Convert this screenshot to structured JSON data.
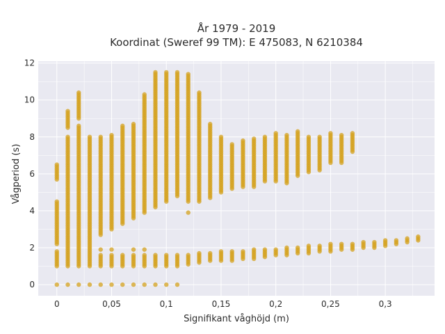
{
  "chart_data": {
    "type": "scatter",
    "title_line1": "År 1979 - 2019",
    "title_line2": "Koordinat (Sweref 99 TM): E 475083, N 6210384",
    "xlabel": "Signifikant våghöjd (m)",
    "ylabel": "Vågperiod (s)",
    "xlim": [
      -0.017,
      0.345
    ],
    "ylim": [
      -0.6,
      12.1
    ],
    "x_ticks": [
      0,
      0.05,
      0.1,
      0.15,
      0.2,
      0.25,
      0.3
    ],
    "x_tick_labels": [
      "0",
      "0,05",
      "0,1",
      "0,15",
      "0,2",
      "0,25",
      "0,3"
    ],
    "y_ticks": [
      0,
      2,
      4,
      6,
      8,
      10,
      12
    ],
    "y_tick_labels": [
      "0",
      "2",
      "4",
      "6",
      "8",
      "10",
      "12"
    ],
    "grid": true,
    "point_color": "#D4A21E",
    "plot_background": "#E9E9F1",
    "series": [
      {
        "columns": [
          {
            "x": 0,
            "segments": [
              [
                0,
                0
              ],
              [
                1,
                1.8
              ],
              [
                2.2,
                4.5
              ],
              [
                5.7,
                6.5
              ]
            ]
          },
          {
            "x": 0.01,
            "segments": [
              [
                0,
                0
              ],
              [
                1,
                8
              ],
              [
                8.5,
                9.4
              ]
            ]
          },
          {
            "x": 0.02,
            "segments": [
              [
                0,
                0
              ],
              [
                1,
                8.6
              ],
              [
                9,
                10.4
              ]
            ]
          },
          {
            "x": 0.03,
            "segments": [
              [
                0,
                0
              ],
              [
                1,
                8
              ]
            ]
          },
          {
            "x": 0.04,
            "segments": [
              [
                0,
                0
              ],
              [
                1,
                1.6
              ],
              [
                1.9,
                1.9
              ],
              [
                2.7,
                8
              ]
            ]
          },
          {
            "x": 0.05,
            "segments": [
              [
                0,
                0
              ],
              [
                1,
                1.6
              ],
              [
                1.9,
                1.9
              ],
              [
                3,
                8.1
              ]
            ]
          },
          {
            "x": 0.06,
            "segments": [
              [
                0,
                0
              ],
              [
                1,
                1.6
              ],
              [
                3.3,
                8.6
              ]
            ]
          },
          {
            "x": 0.07,
            "segments": [
              [
                0,
                0
              ],
              [
                1,
                1.6
              ],
              [
                1.9,
                1.9
              ],
              [
                3.6,
                8.7
              ]
            ]
          },
          {
            "x": 0.08,
            "segments": [
              [
                0,
                0
              ],
              [
                1,
                1.6
              ],
              [
                1.9,
                1.9
              ],
              [
                3.9,
                10.3
              ]
            ]
          },
          {
            "x": 0.09,
            "segments": [
              [
                0,
                0
              ],
              [
                1,
                1.6
              ],
              [
                4.2,
                11.5
              ]
            ]
          },
          {
            "x": 0.1,
            "segments": [
              [
                0,
                0
              ],
              [
                1,
                1.6
              ],
              [
                4.5,
                11.5
              ]
            ]
          },
          {
            "x": 0.11,
            "segments": [
              [
                0,
                0
              ],
              [
                1,
                1.6
              ],
              [
                4.8,
                11.5
              ]
            ]
          },
          {
            "x": 0.12,
            "segments": [
              [
                1.1,
                1.6
              ],
              [
                3.9,
                3.9
              ],
              [
                4.5,
                11.4
              ]
            ]
          },
          {
            "x": 0.13,
            "segments": [
              [
                1.2,
                1.7
              ],
              [
                4.5,
                10.4
              ]
            ]
          },
          {
            "x": 0.14,
            "segments": [
              [
                1.3,
                1.7
              ],
              [
                4.7,
                8.7
              ]
            ]
          },
          {
            "x": 0.15,
            "segments": [
              [
                1.3,
                1.8
              ],
              [
                5,
                8
              ]
            ]
          },
          {
            "x": 0.16,
            "segments": [
              [
                1.3,
                1.8
              ],
              [
                5.2,
                7.6
              ]
            ]
          },
          {
            "x": 0.17,
            "segments": [
              [
                1.4,
                1.8
              ],
              [
                5.3,
                7.8
              ]
            ]
          },
          {
            "x": 0.18,
            "segments": [
              [
                1.4,
                1.9
              ],
              [
                5.3,
                7.9
              ]
            ]
          },
          {
            "x": 0.19,
            "segments": [
              [
                1.5,
                1.9
              ],
              [
                5.6,
                8
              ]
            ]
          },
          {
            "x": 0.2,
            "segments": [
              [
                1.6,
                1.9
              ],
              [
                5.6,
                8.2
              ]
            ]
          },
          {
            "x": 0.21,
            "segments": [
              [
                1.6,
                2
              ],
              [
                5.5,
                8.1
              ]
            ]
          },
          {
            "x": 0.22,
            "segments": [
              [
                1.7,
                2
              ],
              [
                5.9,
                8.3
              ]
            ]
          },
          {
            "x": 0.23,
            "segments": [
              [
                1.7,
                2.1
              ],
              [
                6.1,
                8
              ]
            ]
          },
          {
            "x": 0.24,
            "segments": [
              [
                1.8,
                2.1
              ],
              [
                6.2,
                8
              ]
            ]
          },
          {
            "x": 0.25,
            "segments": [
              [
                1.8,
                2.2
              ],
              [
                6.6,
                8.2
              ]
            ]
          },
          {
            "x": 0.26,
            "segments": [
              [
                1.9,
                2.2
              ],
              [
                6.6,
                8.1
              ]
            ]
          },
          {
            "x": 0.27,
            "segments": [
              [
                1.9,
                2.2
              ],
              [
                7.2,
                8.2
              ]
            ]
          },
          {
            "x": 0.28,
            "segments": [
              [
                2,
                2.3
              ]
            ]
          },
          {
            "x": 0.29,
            "segments": [
              [
                2,
                2.3
              ]
            ]
          },
          {
            "x": 0.3,
            "segments": [
              [
                2.1,
                2.4
              ]
            ]
          },
          {
            "x": 0.31,
            "segments": [
              [
                2.2,
                2.4
              ]
            ]
          },
          {
            "x": 0.32,
            "segments": [
              [
                2.3,
                2.5
              ]
            ]
          },
          {
            "x": 0.33,
            "segments": [
              [
                2.4,
                2.6
              ]
            ]
          }
        ]
      }
    ]
  }
}
